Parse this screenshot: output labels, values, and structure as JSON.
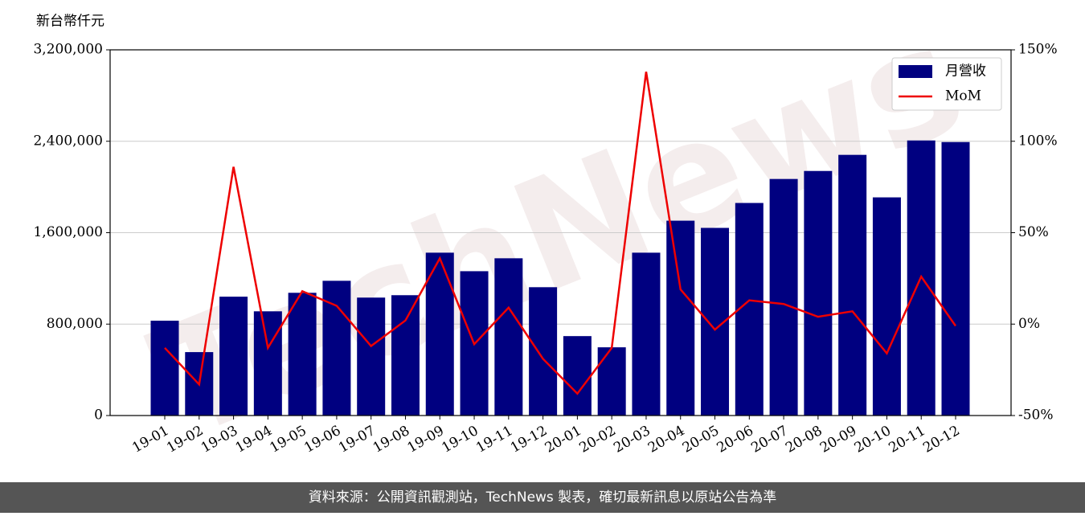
{
  "chart_data": {
    "type": "bar_line",
    "watermark": "TechNews",
    "y_label": "新台幣仟元",
    "categories": [
      "19-01",
      "19-02",
      "19-03",
      "19-04",
      "19-05",
      "19-06",
      "19-07",
      "19-08",
      "19-09",
      "19-10",
      "19-11",
      "19-12",
      "20-01",
      "20-02",
      "20-03",
      "20-04",
      "20-05",
      "20-06",
      "20-07",
      "20-08",
      "20-09",
      "20-10",
      "20-11",
      "20-12"
    ],
    "series": [
      {
        "name": "月營收",
        "color": "#000080",
        "type": "bar",
        "values": [
          830000,
          555000,
          1040000,
          912000,
          1074000,
          1179000,
          1032000,
          1053000,
          1425000,
          1263000,
          1376000,
          1123000,
          695000,
          597000,
          1425000,
          1705000,
          1642000,
          1860000,
          2070000,
          2140000,
          2281000,
          1909000,
          2407000,
          2393000
        ]
      },
      {
        "name": "MoM",
        "color": "#ee0000",
        "type": "line",
        "axis": "y2",
        "values": [
          -13,
          -33,
          86,
          -13,
          18,
          10,
          -12,
          2,
          36,
          -11,
          9,
          -19,
          -38,
          -13,
          138,
          19,
          -3,
          13,
          11,
          4,
          7,
          -16,
          26,
          -1
        ]
      }
    ],
    "ylim": [
      0,
      3200000
    ],
    "yticks": [
      0,
      {
        "value": 800000,
        "label": "800,000"
      },
      {
        "value": 1600000,
        "label": "1,600,000"
      },
      {
        "value": 2400000,
        "label": "2,400,000"
      },
      {
        "value": 3200000,
        "label": "3,200,000"
      }
    ],
    "y2lim": [
      -50,
      150
    ],
    "y2ticks": [
      {
        "value": -50,
        "label": "-50%"
      },
      {
        "value": 0,
        "label": "0%"
      },
      {
        "value": 50,
        "label": "50%"
      },
      {
        "value": 100,
        "label": "100%"
      },
      {
        "value": 150,
        "label": "150%"
      }
    ],
    "grid": true,
    "legend": "upper right",
    "footer": "資料來源：公開資訊觀測站，TechNews 製表，確切最新訊息以原站公告為準"
  }
}
